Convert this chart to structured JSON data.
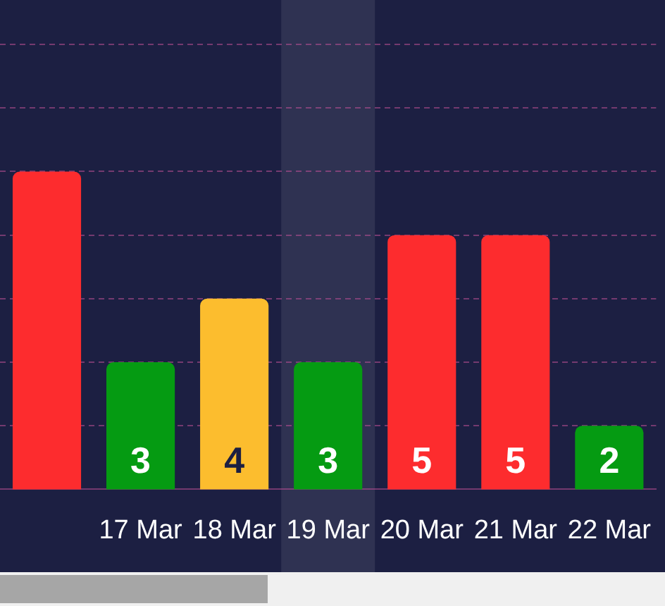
{
  "chart_data": {
    "type": "bar",
    "categories": [
      null,
      "17 Mar",
      "18 Mar",
      "19 Mar",
      "20 Mar",
      "21 Mar",
      "22 Mar"
    ],
    "values": [
      6,
      3,
      4,
      3,
      5,
      5,
      2
    ],
    "colors": [
      "#fd2c2e",
      "#059b12",
      "#fcbd2e",
      "#059b12",
      "#fd2c2e",
      "#fd2c2e",
      "#059b12"
    ],
    "value_labels": [
      null,
      "3",
      "4",
      "3",
      "5",
      "5",
      "2"
    ],
    "ylim": [
      1,
      8.7
    ],
    "yticks": [
      {
        "value": 2,
        "label": null
      },
      {
        "value": 3,
        "label": null
      },
      {
        "value": 4,
        "label": null
      },
      {
        "value": 5,
        "label": null
      },
      {
        "value": 6,
        "label": null
      },
      {
        "value": 7,
        "label": null
      },
      {
        "value": 8,
        "label": null
      }
    ],
    "tick_labels": "x",
    "grid": "y",
    "bands": [
      {
        "axis": "x",
        "from": "19 Mar",
        "to": "19 Mar",
        "color": "#2f3252"
      }
    ],
    "legend": false
  }
}
